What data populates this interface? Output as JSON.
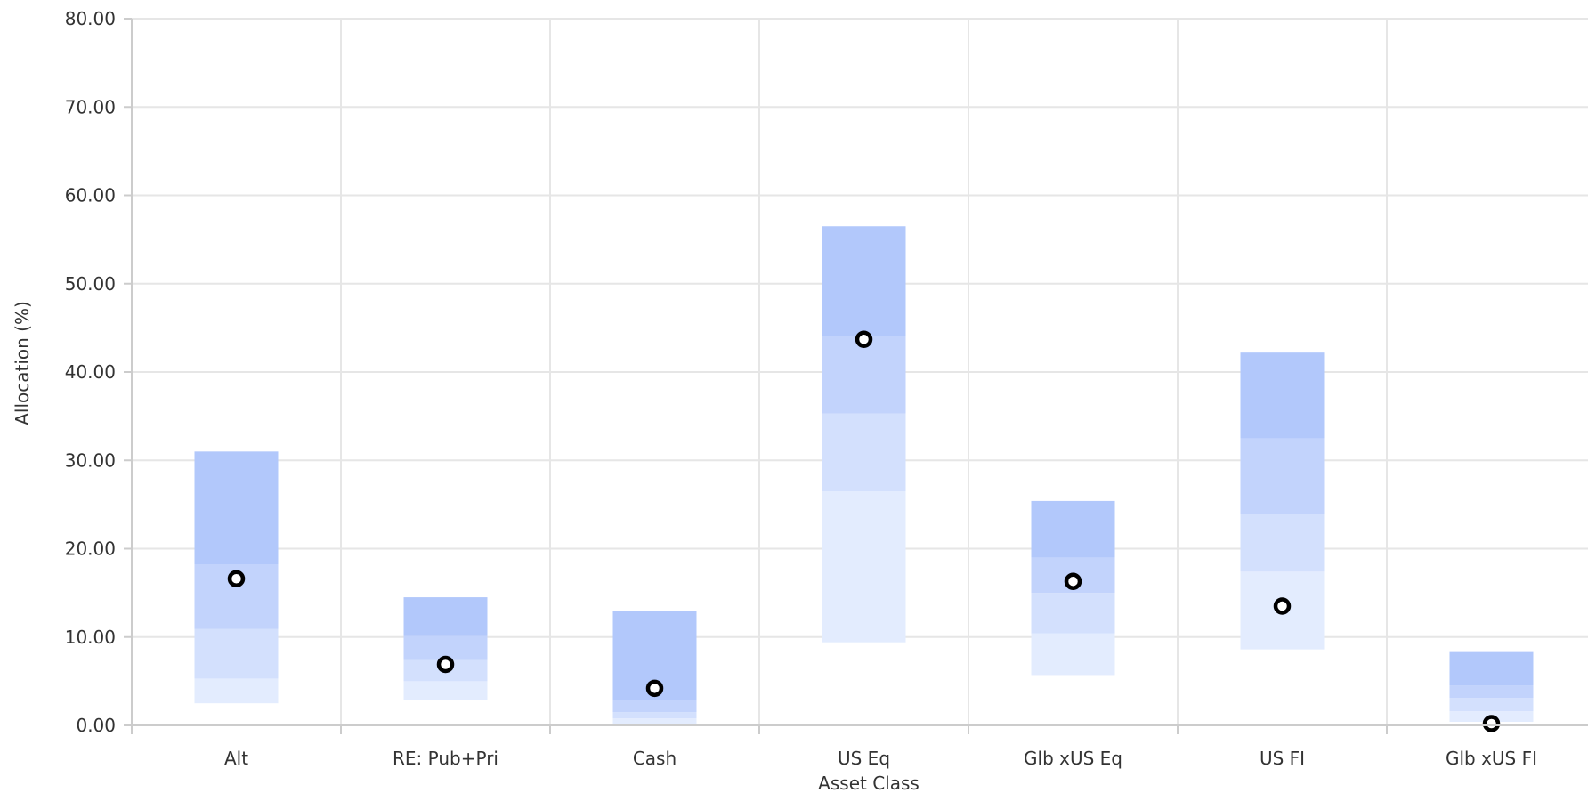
{
  "chart_data": {
    "type": "bar",
    "xlabel": "Asset Class",
    "ylabel": "Allocation (%)",
    "ylim": [
      0,
      80
    ],
    "yticks": [
      "0.00",
      "10.00",
      "20.00",
      "30.00",
      "40.00",
      "50.00",
      "60.00",
      "70.00",
      "80.00"
    ],
    "grid": true,
    "categories": [
      "Alt",
      "RE: Pub+Pri",
      "Cash",
      "US Eq",
      "Glb xUS Eq",
      "US FI",
      "Glb xUS FI"
    ],
    "ranges": [
      {
        "min": 2.5,
        "q1": 5.3,
        "median": 10.9,
        "q3": 18.2,
        "max": 31.0,
        "marker": 16.6
      },
      {
        "min": 2.9,
        "q1": 5.0,
        "median": 7.4,
        "q3": 10.1,
        "max": 14.5,
        "marker": 6.9
      },
      {
        "min": 0.1,
        "q1": 0.8,
        "median": 1.5,
        "q3": 2.9,
        "max": 12.9,
        "marker": 4.2
      },
      {
        "min": 9.4,
        "q1": 26.5,
        "median": 35.3,
        "q3": 44.1,
        "max": 56.5,
        "marker": 43.7
      },
      {
        "min": 5.7,
        "q1": 10.4,
        "median": 15.0,
        "q3": 19.0,
        "max": 25.4,
        "marker": 16.3
      },
      {
        "min": 8.6,
        "q1": 17.4,
        "median": 23.9,
        "q3": 32.5,
        "max": 42.2,
        "marker": 13.5
      },
      {
        "min": 0.4,
        "q1": 1.6,
        "median": 3.1,
        "q3": 4.5,
        "max": 8.3,
        "marker": 0.2
      }
    ],
    "colors": {
      "band_top": "#b2c8fb",
      "band_upper_mid": "#c2d3fc",
      "band_lower_mid": "#d3e0fd",
      "band_bottom": "#e3ecfe",
      "marker": "#000000",
      "grid": "#e6e6e6",
      "axis": "#cccccc"
    }
  }
}
